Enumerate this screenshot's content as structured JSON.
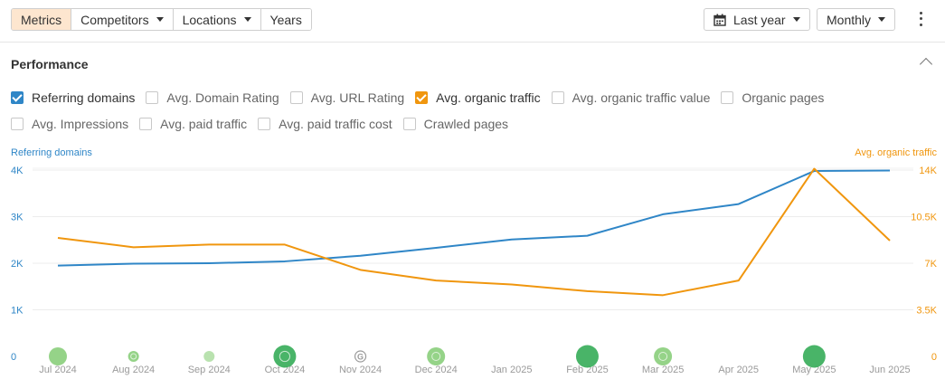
{
  "toolbar": {
    "tabs": [
      {
        "label": "Metrics",
        "active": true,
        "dropdown": false
      },
      {
        "label": "Competitors",
        "active": false,
        "dropdown": true
      },
      {
        "label": "Locations",
        "active": false,
        "dropdown": true
      },
      {
        "label": "Years",
        "active": false,
        "dropdown": false
      }
    ],
    "period": {
      "label": "Last year",
      "icon": "calendar-icon"
    },
    "interval": {
      "label": "Monthly"
    },
    "more_icon": "kebab-menu-icon"
  },
  "performance": {
    "title": "Performance",
    "collapse_icon": "chevron-up-icon",
    "metrics_row1": [
      {
        "label": "Referring domains",
        "checked": true,
        "color": "#2f86c7"
      },
      {
        "label": "Avg. Domain Rating",
        "checked": false
      },
      {
        "label": "Avg. URL Rating",
        "checked": false
      },
      {
        "label": "Avg. organic traffic",
        "checked": true,
        "color": "#f0960e"
      },
      {
        "label": "Avg. organic traffic value",
        "checked": false
      },
      {
        "label": "Organic pages",
        "checked": false
      }
    ],
    "metrics_row2": [
      {
        "label": "Avg. Impressions",
        "checked": false
      },
      {
        "label": "Avg. paid traffic",
        "checked": false
      },
      {
        "label": "Avg. paid traffic cost",
        "checked": false
      },
      {
        "label": "Crawled pages",
        "checked": false
      }
    ]
  },
  "chart_data": {
    "type": "line",
    "left_axis_title": "Referring domains",
    "right_axis_title": "Avg. organic traffic",
    "left_ticks": [
      "0",
      "1K",
      "2K",
      "3K",
      "4K"
    ],
    "right_ticks": [
      "0",
      "3.5K",
      "7K",
      "10.5K",
      "14K"
    ],
    "left_ylim": [
      0,
      4000
    ],
    "right_ylim": [
      0,
      14000
    ],
    "x": [
      "Jul 2024",
      "Aug 2024",
      "Sep 2024",
      "Oct 2024",
      "Nov 2024",
      "Dec 2024",
      "Jan 2025",
      "Feb 2025",
      "Mar 2025",
      "Apr 2025",
      "May 2025",
      "Jun 2025"
    ],
    "series": [
      {
        "name": "Referring domains",
        "axis": "left",
        "color": "#2f86c7",
        "values": [
          1950,
          1990,
          2000,
          2040,
          2160,
          2330,
          2510,
          2590,
          3050,
          3270,
          3980,
          3990
        ]
      },
      {
        "name": "Avg. organic traffic",
        "axis": "right",
        "color": "#f0960e",
        "values": [
          8900,
          8200,
          8400,
          8400,
          6500,
          5700,
          5400,
          4900,
          4600,
          5700,
          14100,
          8700
        ]
      }
    ],
    "markers": [
      {
        "index": 0,
        "size": "medium",
        "style": "filled",
        "color": "#8ccf7e"
      },
      {
        "index": 1,
        "size": "small",
        "style": "google",
        "color": "#8ccf7e"
      },
      {
        "index": 2,
        "size": "small",
        "style": "filled",
        "color": "#b3e0a8"
      },
      {
        "index": 3,
        "size": "large",
        "style": "google",
        "color": "#3aae5b"
      },
      {
        "index": 4,
        "size": "small",
        "style": "google-outline",
        "color": "#9a9a9a"
      },
      {
        "index": 5,
        "size": "medium",
        "style": "google",
        "color": "#8ccf7e"
      },
      {
        "index": 7,
        "size": "large",
        "style": "filled",
        "color": "#3aae5b"
      },
      {
        "index": 8,
        "size": "medium",
        "style": "google",
        "color": "#8ccf7e"
      },
      {
        "index": 10,
        "size": "large",
        "style": "filled",
        "color": "#3aae5b"
      }
    ],
    "grid": true
  }
}
